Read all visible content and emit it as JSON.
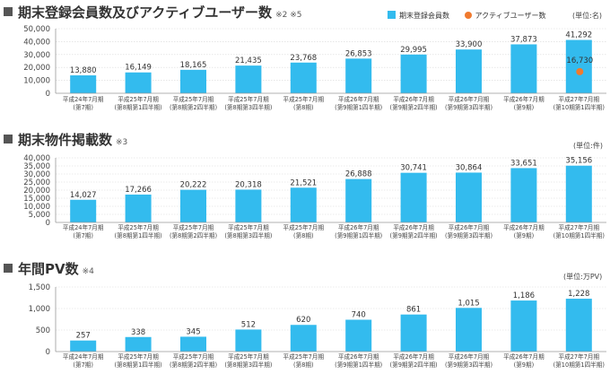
{
  "colors": {
    "bar": "#33bbee",
    "active": "#f07a2e",
    "axis": "#999999",
    "grid": "#d8d8d8"
  },
  "chart_data": [
    {
      "type": "bar",
      "title": "期末登録会員数及びアクティブユーザー数",
      "note": "※2 ※5",
      "unit": "(単位:名)",
      "legend": {
        "bar": "期末登録会員数",
        "dot": "アクティブユーザー数"
      },
      "categories": [
        [
          "平成24年7月期",
          "(第7期)"
        ],
        [
          "平成25年7月期",
          "(第8期第1四半期)"
        ],
        [
          "平成25年7月期",
          "(第8期第2四半期)"
        ],
        [
          "平成25年7月期",
          "(第8期第3四半期)"
        ],
        [
          "平成25年7月期",
          "(第8期)"
        ],
        [
          "平成26年7月期",
          "(第9期第1四半期)"
        ],
        [
          "平成26年7月期",
          "(第9期第2四半期)"
        ],
        [
          "平成26年7月期",
          "(第9期第3四半期)"
        ],
        [
          "平成26年7月期",
          "(第9期)"
        ],
        [
          "平成27年7月期",
          "(第10期第1四半期)"
        ]
      ],
      "values": [
        13880,
        16149,
        18165,
        21435,
        23768,
        26853,
        29995,
        33900,
        37873,
        41292
      ],
      "labels": [
        "13,880",
        "16,149",
        "18,165",
        "21,435",
        "23,768",
        "26,853",
        "29,995",
        "33,900",
        "37,873",
        "41,292"
      ],
      "active_users": {
        "index": 9,
        "value": 16730,
        "label": "16,730"
      },
      "ylim": [
        0,
        50000
      ],
      "yticks": [
        "0",
        "10,000",
        "20,000",
        "30,000",
        "40,000",
        "50,000"
      ]
    },
    {
      "type": "bar",
      "title": "期末物件掲載数",
      "note": "※3",
      "unit": "(単位:件)",
      "categories": [
        [
          "平成24年7月期",
          "(第7期)"
        ],
        [
          "平成25年7月期",
          "(第8期第1四半期)"
        ],
        [
          "平成25年7月期",
          "(第8期第2四半期)"
        ],
        [
          "平成25年7月期",
          "(第8期第3四半期)"
        ],
        [
          "平成25年7月期",
          "(第8期)"
        ],
        [
          "平成26年7月期",
          "(第9期第1四半期)"
        ],
        [
          "平成26年7月期",
          "(第9期第2四半期)"
        ],
        [
          "平成26年7月期",
          "(第9期第3四半期)"
        ],
        [
          "平成26年7月期",
          "(第9期)"
        ],
        [
          "平成27年7月期",
          "(第10期第1四半期)"
        ]
      ],
      "values": [
        14027,
        17266,
        20222,
        20318,
        21521,
        26888,
        30741,
        30864,
        33651,
        35156
      ],
      "labels": [
        "14,027",
        "17,266",
        "20,222",
        "20,318",
        "21,521",
        "26,888",
        "30,741",
        "30,864",
        "33,651",
        "35,156"
      ],
      "ylim": [
        0,
        40000
      ],
      "yticks": [
        "0",
        "5,000",
        "10,000",
        "15,000",
        "20,000",
        "25,000",
        "30,000",
        "35,000",
        "40,000"
      ]
    },
    {
      "type": "bar",
      "title": "年間PV数",
      "note": "※4",
      "unit": "(単位:万PV)",
      "categories": [
        [
          "平成24年7月期",
          "(第7期)"
        ],
        [
          "平成25年7月期",
          "(第8期第1四半期)"
        ],
        [
          "平成25年7月期",
          "(第8期第2四半期)"
        ],
        [
          "平成25年7月期",
          "(第8期第3四半期)"
        ],
        [
          "平成25年7月期",
          "(第8期)"
        ],
        [
          "平成26年7月期",
          "(第9期第1四半期)"
        ],
        [
          "平成26年7月期",
          "(第9期第2四半期)"
        ],
        [
          "平成26年7月期",
          "(第9期第3四半期)"
        ],
        [
          "平成26年7月期",
          "(第9期)"
        ],
        [
          "平成27年7月期",
          "(第10期第1四半期)"
        ]
      ],
      "values": [
        257,
        338,
        345,
        512,
        620,
        740,
        861,
        1015,
        1186,
        1228
      ],
      "labels": [
        "257",
        "338",
        "345",
        "512",
        "620",
        "740",
        "861",
        "1,015",
        "1,186",
        "1,228"
      ],
      "ylim": [
        0,
        1500
      ],
      "yticks": [
        "0",
        "500",
        "1,000",
        "1,500"
      ]
    }
  ]
}
